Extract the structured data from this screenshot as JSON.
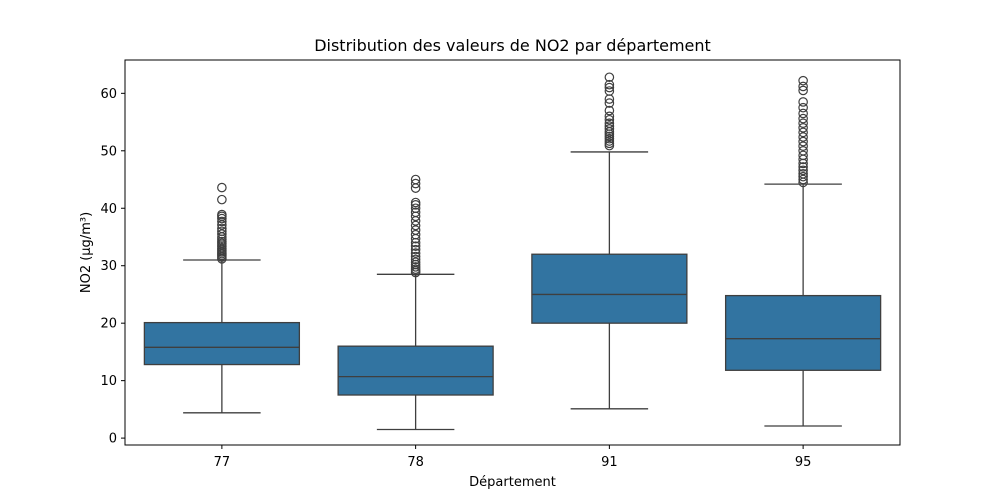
{
  "chart_data": {
    "type": "box",
    "title": "Distribution des valeurs de NO2 par département",
    "xlabel": "Département",
    "ylabel": "NO2 (µg/m³)",
    "ylim": [
      -1.2,
      65.8
    ],
    "yticks": [
      0,
      10,
      20,
      30,
      40,
      50,
      60
    ],
    "categories": [
      "77",
      "78",
      "91",
      "95"
    ],
    "grid": false,
    "box_color": "#3274a1",
    "line_color": "#3f3f3f",
    "boxes": [
      {
        "category": "77",
        "whisker_low": 4.4,
        "q1": 12.8,
        "median": 15.8,
        "q3": 20.1,
        "whisker_high": 31.0,
        "outliers": [
          31.2,
          31.5,
          31.8,
          32.1,
          32.4,
          32.7,
          33.0,
          33.3,
          33.6,
          33.9,
          34.2,
          34.6,
          35.0,
          35.5,
          36.0,
          36.5,
          37.1,
          37.7,
          38.2,
          38.6,
          38.9,
          41.5,
          43.6
        ]
      },
      {
        "category": "78",
        "whisker_low": 1.5,
        "q1": 7.5,
        "median": 10.7,
        "q3": 16.0,
        "whisker_high": 28.5,
        "outliers": [
          28.8,
          29.1,
          29.4,
          29.8,
          30.2,
          30.6,
          31.1,
          31.6,
          32.2,
          32.8,
          33.4,
          34.0,
          34.7,
          35.4,
          36.2,
          37.0,
          37.8,
          38.6,
          39.3,
          40.0,
          40.6,
          41.0,
          43.5,
          44.3,
          45.0
        ]
      },
      {
        "category": "91",
        "whisker_low": 5.1,
        "q1": 20.0,
        "median": 25.0,
        "q3": 32.0,
        "whisker_high": 49.8,
        "outliers": [
          50.9,
          51.3,
          51.7,
          52.1,
          52.5,
          52.9,
          53.3,
          53.8,
          54.3,
          54.8,
          55.4,
          56.0,
          57.0,
          58.3,
          59.0,
          60.4,
          61.0,
          61.5,
          62.8
        ]
      },
      {
        "category": "95",
        "whisker_low": 2.1,
        "q1": 11.8,
        "median": 17.3,
        "q3": 24.8,
        "whisker_high": 44.2,
        "outliers": [
          44.5,
          45.0,
          45.5,
          46.0,
          46.6,
          47.2,
          47.8,
          48.5,
          49.2,
          50.0,
          50.8,
          51.6,
          52.4,
          53.2,
          54.0,
          54.8,
          55.6,
          56.5,
          57.5,
          58.5,
          60.5,
          61.2,
          62.2
        ]
      }
    ]
  }
}
